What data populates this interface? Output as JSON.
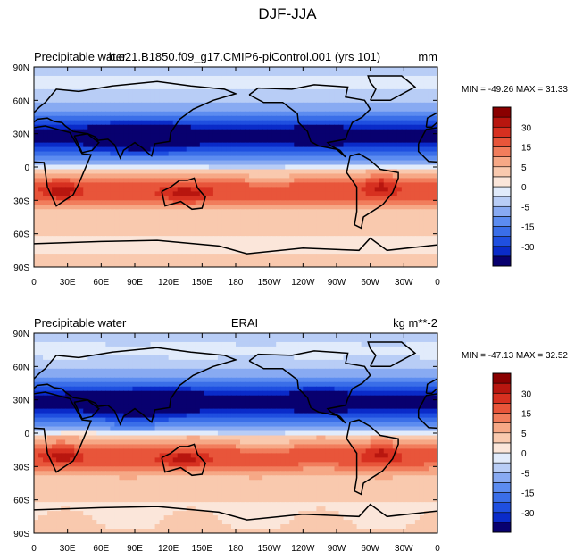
{
  "figure_title": "DJF-JJA",
  "chart_data": [
    {
      "type": "heatmap",
      "panel": "model",
      "left_title": "Precipitable water",
      "center_title": "b.e21.B1850.f09_g17.CMIP6-piControl.001 (yrs 101)",
      "right_title": "mm",
      "stats_label": "MIN = -49.26 MAX =  31.33",
      "min": -49.26,
      "max": 31.33,
      "x_ticks": [
        "0",
        "30E",
        "60E",
        "90E",
        "120E",
        "150E",
        "180",
        "150W",
        "120W",
        "90W",
        "60W",
        "30W",
        "0"
      ],
      "y_ticks": [
        "90N",
        "60N",
        "30N",
        "0",
        "30S",
        "60S",
        "90S"
      ],
      "x_range": [
        0,
        360
      ],
      "y_range": [
        -90,
        90
      ],
      "colorbar_levels": [
        -30,
        -15,
        -5,
        0,
        5,
        15,
        30
      ],
      "colorbar_labels": [
        "30",
        "15",
        "5",
        "0",
        "-5",
        "-15",
        "-30"
      ]
    },
    {
      "type": "heatmap",
      "panel": "obs",
      "left_title": "Precipitable water",
      "center_title": "ERAI",
      "right_title": "kg m**-2",
      "stats_label": "MIN = -47.13 MAX =  32.52",
      "min": -47.13,
      "max": 32.52,
      "x_ticks": [
        "0",
        "30E",
        "60E",
        "90E",
        "120E",
        "150E",
        "180",
        "150W",
        "120W",
        "90W",
        "60W",
        "30W",
        "0"
      ],
      "y_ticks": [
        "90N",
        "60N",
        "30N",
        "0",
        "30S",
        "60S",
        "90S"
      ],
      "x_range": [
        0,
        360
      ],
      "y_range": [
        -90,
        90
      ],
      "colorbar_levels": [
        -30,
        -15,
        -5,
        0,
        5,
        15,
        30
      ],
      "colorbar_labels": [
        "30",
        "15",
        "5",
        "0",
        "-5",
        "-15",
        "-30"
      ]
    }
  ],
  "colors": {
    "palette": [
      "#08006f",
      "#0a2bc9",
      "#1f4fe0",
      "#3a6ee8",
      "#5c8cf0",
      "#88aaf2",
      "#b8cdf6",
      "#e1ebfb",
      "#fbe6da",
      "#f9c9ae",
      "#f6a886",
      "#f17d5c",
      "#e8553a",
      "#d73020",
      "#b8160f",
      "#8a0000"
    ]
  }
}
